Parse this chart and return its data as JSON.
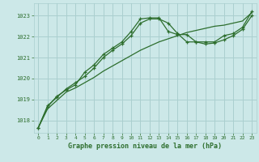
{
  "title": "Graphe pression niveau de la mer (hPa)",
  "bg_color": "#cce8e8",
  "grid_color": "#aacfcf",
  "line_color": "#2d6e2d",
  "xlim": [
    -0.5,
    23.5
  ],
  "ylim": [
    1017.4,
    1023.6
  ],
  "yticks": [
    1018,
    1019,
    1020,
    1021,
    1022,
    1023
  ],
  "xticks": [
    0,
    1,
    2,
    3,
    4,
    5,
    6,
    7,
    8,
    9,
    10,
    11,
    12,
    13,
    14,
    15,
    16,
    17,
    18,
    19,
    20,
    21,
    22,
    23
  ],
  "series1_x": [
    0,
    1,
    2,
    3,
    4,
    5,
    6,
    7,
    8,
    9,
    10,
    11,
    12,
    13,
    14,
    15,
    16,
    17,
    18,
    19,
    20,
    21,
    22,
    23
  ],
  "series1_y": [
    1017.65,
    1018.65,
    1019.15,
    1019.45,
    1019.7,
    1020.3,
    1020.65,
    1021.15,
    1021.45,
    1021.75,
    1022.25,
    1022.85,
    1022.9,
    1022.9,
    1022.25,
    1022.1,
    1022.1,
    1021.75,
    1021.75,
    1021.75,
    1022.05,
    1022.15,
    1022.45,
    1023.2
  ],
  "series2_x": [
    0,
    1,
    2,
    3,
    4,
    5,
    6,
    7,
    8,
    9,
    10,
    11,
    12,
    13,
    14,
    15,
    16,
    17,
    18,
    19,
    20,
    21,
    22,
    23
  ],
  "series2_y": [
    1017.65,
    1018.7,
    1019.1,
    1019.5,
    1019.8,
    1020.1,
    1020.5,
    1021.0,
    1021.35,
    1021.65,
    1022.05,
    1022.65,
    1022.85,
    1022.85,
    1022.65,
    1022.15,
    1021.75,
    1021.75,
    1021.65,
    1021.7,
    1021.85,
    1022.05,
    1022.35,
    1023.0
  ],
  "series3_x": [
    0,
    1,
    2,
    3,
    4,
    5,
    6,
    7,
    8,
    9,
    10,
    11,
    12,
    13,
    14,
    15,
    16,
    17,
    18,
    19,
    20,
    21,
    22,
    23
  ],
  "series3_y": [
    1017.65,
    1018.55,
    1018.95,
    1019.35,
    1019.55,
    1019.8,
    1020.05,
    1020.35,
    1020.6,
    1020.85,
    1021.1,
    1021.35,
    1021.55,
    1021.75,
    1021.9,
    1022.05,
    1022.2,
    1022.3,
    1022.4,
    1022.5,
    1022.55,
    1022.65,
    1022.75,
    1023.15
  ]
}
